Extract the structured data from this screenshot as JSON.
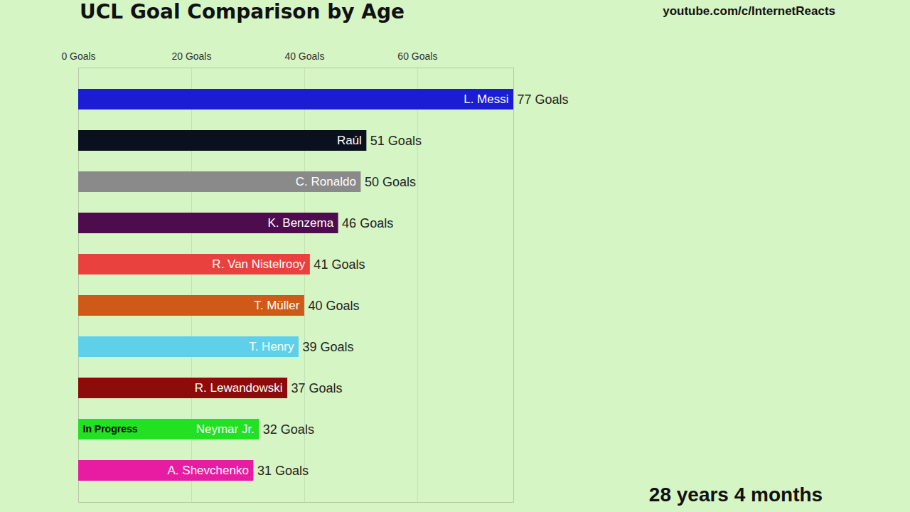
{
  "chart_data": {
    "type": "bar",
    "orientation": "horizontal",
    "title": "UCL Goal Comparison by Age",
    "categories": [
      "L. Messi",
      "Raúl",
      "C. Ronaldo",
      "K. Benzema",
      "R. Van Nistelrooy",
      "T. Müller",
      "T. Henry",
      "R. Lewandowski",
      "Neymar Jr.",
      "A. Shevchenko"
    ],
    "values": [
      77,
      51,
      50,
      46,
      41,
      40,
      39,
      37,
      32,
      31
    ],
    "value_labels": [
      "77 Goals",
      "51 Goals",
      "50 Goals",
      "46 Goals",
      "41 Goals",
      "40 Goals",
      "39 Goals",
      "37 Goals",
      "32 Goals",
      "31 Goals"
    ],
    "colors": [
      "#1c1cd4",
      "#0b1020",
      "#8a8a8a",
      "#4d0c4d",
      "#e8413e",
      "#cf5a18",
      "#5fd0ea",
      "#8e0b0b",
      "#22e022",
      "#e81ca2"
    ],
    "xlim": [
      0,
      77
    ],
    "xticks": [
      {
        "value": 0,
        "label": "0 Goals"
      },
      {
        "value": 20,
        "label": "20 Goals"
      },
      {
        "value": 40,
        "label": "40 Goals"
      },
      {
        "value": 60,
        "label": "60 Goals"
      }
    ],
    "grid": true,
    "data_labels": true,
    "annotations": [
      {
        "text": "In Progress",
        "category": "Neymar Jr."
      },
      {
        "text": "youtube.com/c/InternetReacts"
      },
      {
        "text": "28 years 4 months"
      }
    ]
  }
}
